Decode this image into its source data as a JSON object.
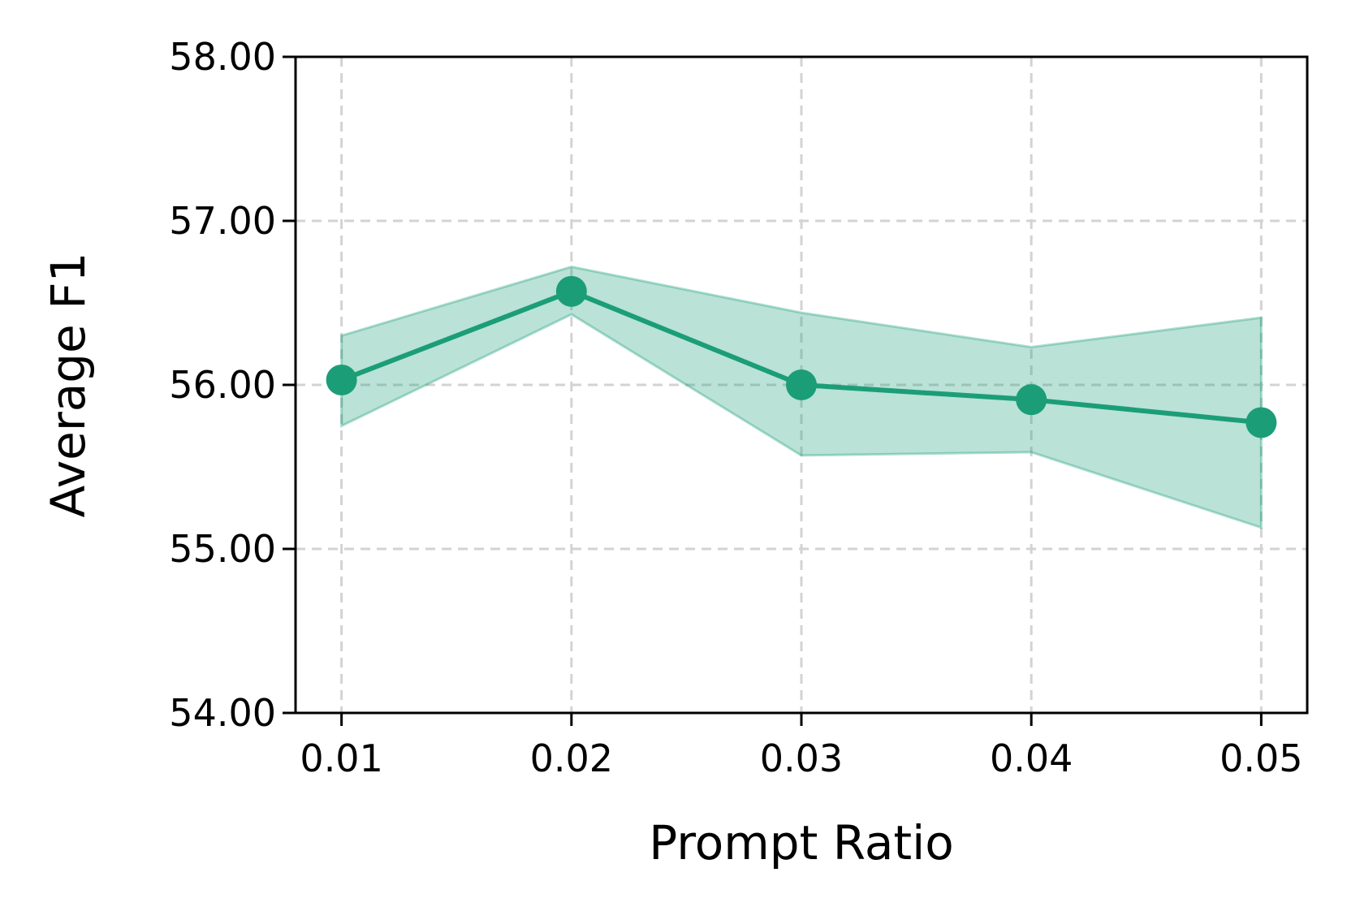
{
  "chart_data": {
    "type": "line",
    "title": "",
    "xlabel": "Prompt Ratio",
    "ylabel": "Average F1",
    "x": [
      0.01,
      0.02,
      0.03,
      0.04,
      0.05
    ],
    "x_tick_labels": [
      "0.01",
      "0.02",
      "0.03",
      "0.04",
      "0.05"
    ],
    "y_ticks": [
      54.0,
      55.0,
      56.0,
      57.0,
      58.0
    ],
    "y_tick_labels": [
      "54.00",
      "55.00",
      "56.00",
      "57.00",
      "58.00"
    ],
    "xlim": [
      0.008,
      0.052
    ],
    "ylim": [
      54.0,
      58.0
    ],
    "grid": true,
    "series": [
      {
        "values": [
          56.03,
          56.57,
          56.0,
          55.91,
          55.77
        ],
        "lower": [
          55.75,
          56.43,
          55.57,
          55.59,
          55.13
        ],
        "upper": [
          56.3,
          56.72,
          56.44,
          56.23,
          56.41
        ],
        "color": "#1b9e77",
        "band_color": "#1b9e77"
      }
    ]
  }
}
